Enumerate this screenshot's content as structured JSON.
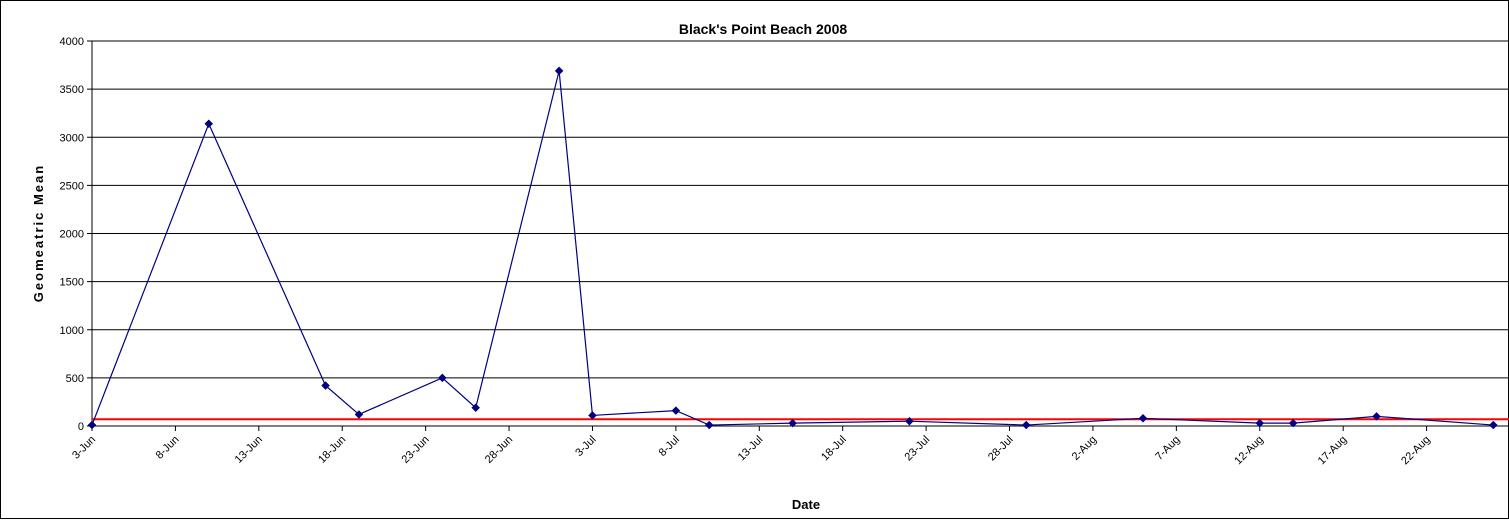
{
  "chart_data": {
    "type": "line",
    "title": "Black's Point Beach 2008",
    "xlabel": "Date",
    "ylabel": "Geomeatric Mean",
    "ylim": [
      0,
      4000
    ],
    "yticks": [
      0,
      500,
      1000,
      1500,
      2000,
      2500,
      3000,
      3500,
      4000
    ],
    "xlim": [
      "2008-06-03",
      "2008-08-27"
    ],
    "xticks": [
      "3-Jun",
      "8-Jun",
      "13-Jun",
      "18-Jun",
      "23-Jun",
      "28-Jun",
      "3-Jul",
      "8-Jul",
      "13-Jul",
      "18-Jul",
      "23-Jul",
      "28-Jul",
      "2-Aug",
      "7-Aug",
      "12-Aug",
      "17-Aug",
      "22-Aug"
    ],
    "grid": "horizontal",
    "series": [
      {
        "color": "#000080",
        "marker": "diamond",
        "points": [
          {
            "x": "2008-06-03",
            "y": 10
          },
          {
            "x": "2008-06-10",
            "y": 3140
          },
          {
            "x": "2008-06-17",
            "y": 420
          },
          {
            "x": "2008-06-19",
            "y": 120
          },
          {
            "x": "2008-06-24",
            "y": 500
          },
          {
            "x": "2008-06-26",
            "y": 190
          },
          {
            "x": "2008-07-01",
            "y": 3690
          },
          {
            "x": "2008-07-03",
            "y": 110
          },
          {
            "x": "2008-07-08",
            "y": 160
          },
          {
            "x": "2008-07-10",
            "y": 10
          },
          {
            "x": "2008-07-15",
            "y": 30
          },
          {
            "x": "2008-07-22",
            "y": 50
          },
          {
            "x": "2008-07-29",
            "y": 10
          },
          {
            "x": "2008-08-05",
            "y": 80
          },
          {
            "x": "2008-08-12",
            "y": 30
          },
          {
            "x": "2008-08-14",
            "y": 30
          },
          {
            "x": "2008-08-19",
            "y": 100
          },
          {
            "x": "2008-08-26",
            "y": 10
          }
        ]
      }
    ],
    "reference_line": {
      "y": 70,
      "color": "#ff0000"
    }
  }
}
